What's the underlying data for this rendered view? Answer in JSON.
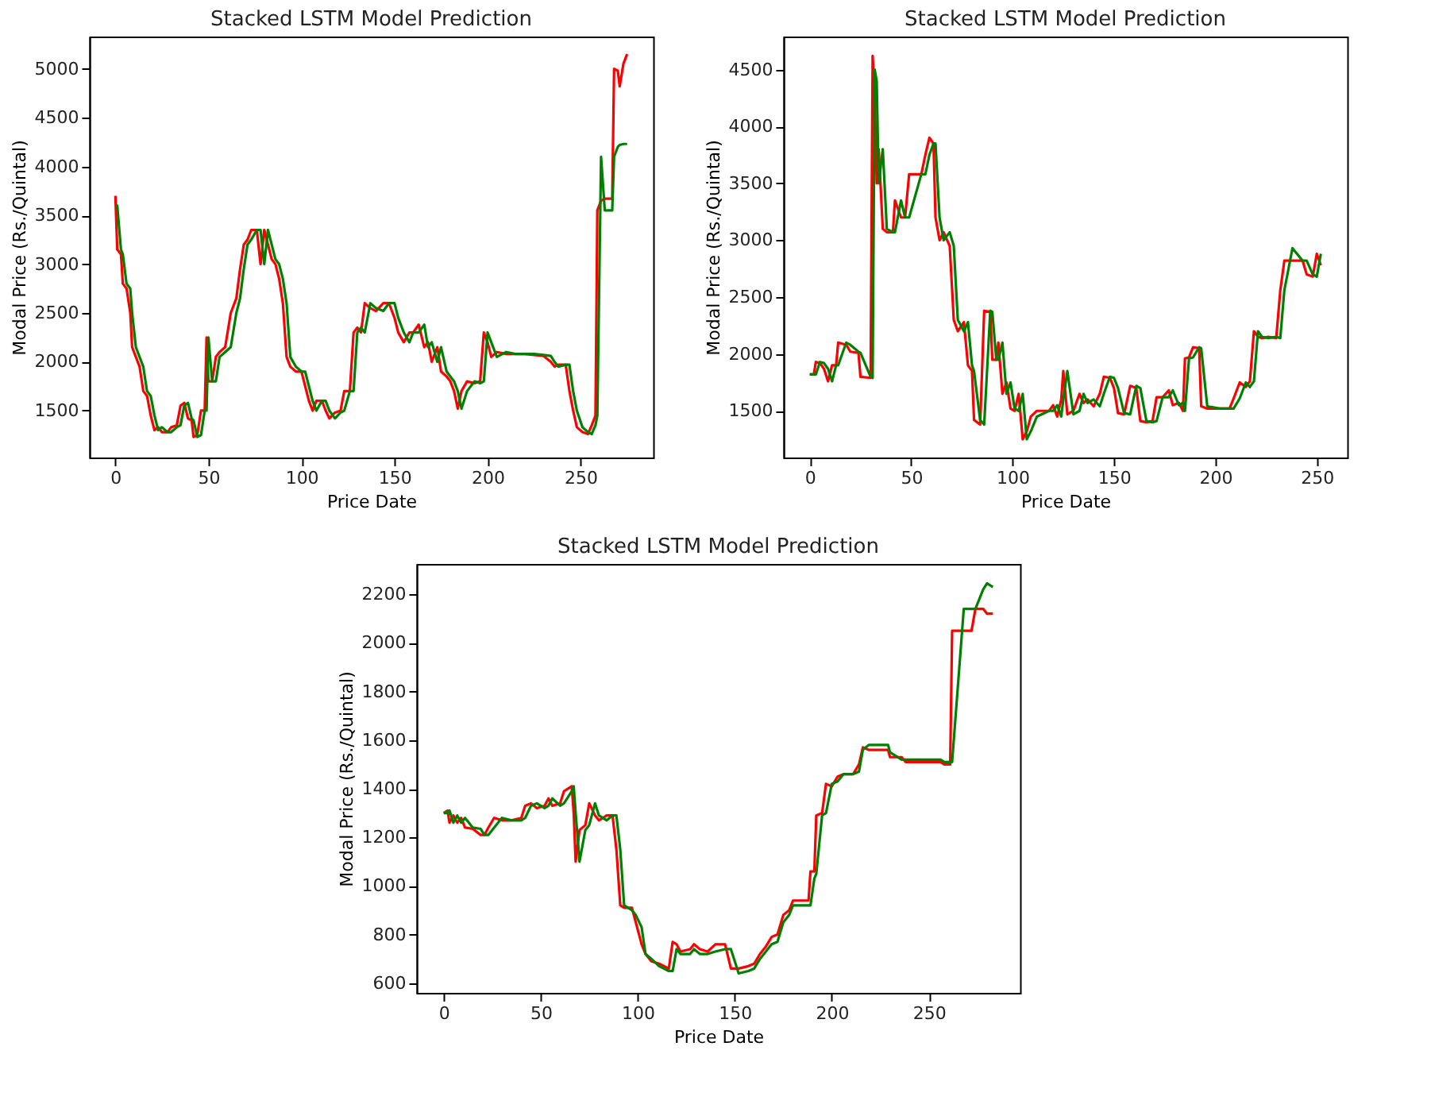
{
  "chart_data": [
    {
      "type": "line",
      "title": "Stacked LSTM Model Prediction",
      "xlabel": "Price Date",
      "ylabel": "Modal Price (Rs./Quintal)",
      "xlim": [
        -14,
        289
      ],
      "xticks": [
        0,
        50,
        100,
        150,
        200,
        250
      ],
      "ylim": [
        1020,
        5330
      ],
      "yticks": [
        1500,
        2000,
        2500,
        3000,
        3500,
        4000,
        4500,
        5000
      ],
      "grid": false,
      "x": [
        0,
        1,
        3,
        4,
        6,
        8,
        9,
        11,
        13,
        15,
        17,
        19,
        21,
        23,
        25,
        28,
        30,
        33,
        35,
        37,
        39,
        41,
        42,
        44,
        46,
        48,
        49,
        50,
        52,
        54,
        56,
        59,
        62,
        65,
        67,
        69,
        71,
        73,
        76,
        78,
        80,
        82,
        84,
        86,
        88,
        90,
        92,
        94,
        97,
        100,
        102,
        104,
        106,
        108,
        111,
        113,
        115,
        118,
        121,
        123,
        126,
        128,
        130,
        132,
        134,
        137,
        140,
        144,
        147,
        150,
        152,
        155,
        158,
        160,
        163,
        166,
        168,
        170,
        173,
        175,
        178,
        180,
        182,
        184,
        186,
        189,
        193,
        196,
        198,
        200,
        202,
        205,
        210,
        215,
        220,
        225,
        230,
        234,
        236,
        238,
        242,
        244,
        246,
        248,
        251,
        254,
        256,
        258,
        259,
        261,
        263,
        267,
        268,
        270,
        271,
        273,
        275
      ],
      "series": [
        {
          "color": "#ff0000",
          "values": [
            3700,
            3150,
            3100,
            2800,
            2750,
            2500,
            2150,
            2050,
            1950,
            1700,
            1650,
            1450,
            1300,
            1330,
            1280,
            1280,
            1330,
            1350,
            1550,
            1580,
            1420,
            1400,
            1230,
            1250,
            1500,
            1500,
            2250,
            1800,
            1800,
            2050,
            2100,
            2150,
            2500,
            2650,
            2950,
            3200,
            3250,
            3350,
            3350,
            3000,
            3350,
            3200,
            3050,
            3000,
            2850,
            2600,
            2050,
            1950,
            1900,
            1900,
            1750,
            1600,
            1500,
            1600,
            1600,
            1500,
            1420,
            1480,
            1500,
            1700,
            1700,
            2300,
            2350,
            2300,
            2600,
            2550,
            2520,
            2600,
            2600,
            2450,
            2300,
            2200,
            2300,
            2300,
            2380,
            2150,
            2200,
            2000,
            2150,
            1900,
            1850,
            1800,
            1700,
            1520,
            1700,
            1800,
            1780,
            1800,
            2300,
            2200,
            2050,
            2100,
            2080,
            2080,
            2080,
            2070,
            2060,
            2000,
            1950,
            1970,
            1970,
            1700,
            1500,
            1330,
            1280,
            1260,
            1350,
            1450,
            3550,
            3650,
            3670,
            3670,
            5000,
            4980,
            4820,
            5050,
            5150
          ]
        },
        {
          "color": "#008000",
          "values": [
            3600,
            3600,
            3150,
            3100,
            2800,
            2750,
            2500,
            2150,
            2050,
            1950,
            1700,
            1650,
            1450,
            1300,
            1330,
            1280,
            1280,
            1330,
            1350,
            1550,
            1580,
            1420,
            1400,
            1230,
            1250,
            1500,
            1500,
            2250,
            1800,
            1800,
            2050,
            2100,
            2150,
            2500,
            2650,
            2950,
            3200,
            3250,
            3350,
            3350,
            3000,
            3350,
            3200,
            3050,
            3000,
            2850,
            2600,
            2050,
            1950,
            1900,
            1900,
            1750,
            1600,
            1500,
            1600,
            1600,
            1500,
            1420,
            1480,
            1500,
            1700,
            1700,
            2300,
            2350,
            2300,
            2600,
            2550,
            2520,
            2600,
            2600,
            2450,
            2300,
            2200,
            2300,
            2300,
            2380,
            2150,
            2200,
            2000,
            2150,
            1900,
            1850,
            1800,
            1700,
            1520,
            1700,
            1800,
            1780,
            1800,
            2300,
            2200,
            2050,
            2100,
            2080,
            2080,
            2080,
            2070,
            2060,
            2000,
            1950,
            1970,
            1970,
            1700,
            1500,
            1330,
            1280,
            1260,
            1350,
            1450,
            4100,
            3550,
            3550,
            4100,
            4200,
            4220,
            4230,
            4230
          ]
        }
      ]
    },
    {
      "type": "line",
      "title": "Stacked LSTM Model Prediction",
      "xlabel": "Price Date",
      "ylabel": "Modal Price (Rs./Quintal)",
      "xlim": [
        -13,
        265
      ],
      "xticks": [
        0,
        50,
        100,
        150,
        200,
        250
      ],
      "ylim": [
        1090,
        4790
      ],
      "yticks": [
        1500,
        2000,
        2500,
        3000,
        3500,
        4000,
        4500
      ],
      "grid": false,
      "x": [
        0,
        2,
        3,
        5,
        7,
        9,
        11,
        13,
        14,
        18,
        20,
        24,
        25,
        30,
        31,
        32,
        33,
        34,
        36,
        38,
        41,
        42,
        45,
        47,
        49,
        55,
        57,
        59,
        61,
        62,
        64,
        66,
        69,
        71,
        73,
        76,
        78,
        80,
        81,
        84,
        86,
        89,
        90,
        92,
        93,
        95,
        97,
        99,
        101,
        103,
        105,
        107,
        109,
        112,
        118,
        120,
        122,
        124,
        125,
        127,
        130,
        133,
        135,
        137,
        140,
        143,
        145,
        148,
        150,
        152,
        155,
        158,
        161,
        163,
        166,
        169,
        171,
        174,
        177,
        179,
        182,
        184,
        185,
        187,
        189,
        192,
        193,
        196,
        202,
        207,
        209,
        212,
        215,
        217,
        219,
        221,
        223,
        226,
        230,
        232,
        234,
        238,
        243,
        245,
        248,
        250,
        252
      ],
      "series": [
        {
          "color": "#ff0000",
          "values": [
            1820,
            1820,
            1930,
            1920,
            1870,
            1760,
            1900,
            1900,
            2100,
            2080,
            2020,
            2010,
            1800,
            1790,
            4620,
            4300,
            3500,
            3800,
            3100,
            3070,
            3070,
            3350,
            3200,
            3200,
            3580,
            3580,
            3750,
            3900,
            3850,
            3200,
            3000,
            3070,
            2950,
            2300,
            2200,
            2280,
            1900,
            1850,
            1420,
            1380,
            2380,
            2370,
            1950,
            1950,
            2100,
            1650,
            1750,
            1520,
            1500,
            1650,
            1250,
            1320,
            1450,
            1500,
            1500,
            1550,
            1450,
            1600,
            1850,
            1470,
            1500,
            1650,
            1570,
            1600,
            1540,
            1650,
            1800,
            1790,
            1700,
            1480,
            1470,
            1720,
            1700,
            1410,
            1400,
            1410,
            1620,
            1620,
            1680,
            1550,
            1570,
            1500,
            1960,
            1970,
            2060,
            2050,
            1540,
            1520,
            1520,
            1520,
            1610,
            1750,
            1710,
            1760,
            2200,
            2150,
            2140,
            2150,
            2140,
            2560,
            2820,
            2820,
            2820,
            2700,
            2680,
            2880,
            2780
          ]
        },
        {
          "color": "#008000",
          "values": [
            1820,
            1820,
            1820,
            1930,
            1920,
            1870,
            1760,
            1900,
            1900,
            2100,
            2080,
            2020,
            2010,
            1800,
            1790,
            4500,
            4400,
            3500,
            3800,
            3100,
            3070,
            3070,
            3350,
            3200,
            3200,
            3580,
            3580,
            3750,
            3850,
            3850,
            3200,
            3000,
            3070,
            2950,
            2300,
            2200,
            2280,
            1900,
            1850,
            1420,
            1380,
            2380,
            2370,
            1950,
            1950,
            2100,
            1650,
            1750,
            1520,
            1500,
            1650,
            1250,
            1320,
            1450,
            1500,
            1500,
            1550,
            1450,
            1600,
            1850,
            1470,
            1500,
            1650,
            1570,
            1600,
            1540,
            1650,
            1800,
            1790,
            1700,
            1480,
            1470,
            1720,
            1700,
            1410,
            1400,
            1410,
            1620,
            1620,
            1680,
            1550,
            1570,
            1500,
            1960,
            1970,
            2060,
            2050,
            1540,
            1520,
            1520,
            1520,
            1610,
            1750,
            1710,
            1760,
            2200,
            2150,
            2140,
            2150,
            2140,
            2560,
            2930,
            2820,
            2820,
            2700,
            2680,
            2880
          ]
        }
      ]
    },
    {
      "type": "line",
      "title": "Stacked LSTM Model Prediction",
      "xlabel": "Price Date",
      "ylabel": "Modal Price (Rs./Quintal)",
      "xlim": [
        -14,
        297
      ],
      "xticks": [
        0,
        50,
        100,
        150,
        200,
        250
      ],
      "ylim": [
        560,
        2325
      ],
      "yticks": [
        600,
        800,
        1000,
        1200,
        1400,
        1600,
        1800,
        2000,
        2200
      ],
      "grid": false,
      "x": [
        0,
        2,
        3,
        5,
        7,
        9,
        11,
        15,
        19,
        21,
        23,
        26,
        30,
        35,
        40,
        42,
        45,
        48,
        52,
        54,
        56,
        60,
        62,
        66,
        67,
        68,
        70,
        73,
        75,
        78,
        80,
        84,
        87,
        89,
        91,
        93,
        97,
        99,
        102,
        104,
        107,
        111,
        116,
        118,
        120,
        122,
        127,
        129,
        132,
        136,
        140,
        145,
        148,
        152,
        157,
        160,
        163,
        166,
        169,
        172,
        175,
        178,
        180,
        188,
        189,
        191,
        192,
        195,
        197,
        200,
        203,
        206,
        211,
        214,
        216,
        219,
        229,
        230,
        236,
        238,
        250,
        256,
        258,
        261,
        262,
        268,
        272,
        274,
        278,
        280,
        283
      ],
      "series": [
        {
          "color": "#ff0000",
          "values": [
            1300,
            1310,
            1260,
            1290,
            1260,
            1280,
            1240,
            1235,
            1210,
            1210,
            1240,
            1280,
            1270,
            1270,
            1280,
            1330,
            1340,
            1320,
            1330,
            1360,
            1330,
            1340,
            1390,
            1410,
            1300,
            1100,
            1230,
            1250,
            1340,
            1290,
            1270,
            1290,
            1290,
            1150,
            920,
            910,
            910,
            850,
            760,
            720,
            690,
            680,
            660,
            770,
            760,
            730,
            740,
            760,
            740,
            730,
            760,
            760,
            660,
            660,
            670,
            680,
            720,
            750,
            790,
            800,
            880,
            900,
            940,
            940,
            1060,
            1060,
            1290,
            1300,
            1420,
            1410,
            1450,
            1460,
            1460,
            1500,
            1570,
            1560,
            1560,
            1530,
            1530,
            1510,
            1510,
            1510,
            1500,
            1500,
            2050,
            2050,
            2050,
            2140,
            2140,
            2120,
            2120
          ]
        },
        {
          "color": "#008000",
          "values": [
            1300,
            1300,
            1310,
            1260,
            1290,
            1260,
            1280,
            1240,
            1235,
            1210,
            1210,
            1240,
            1280,
            1270,
            1270,
            1280,
            1330,
            1340,
            1320,
            1330,
            1360,
            1330,
            1340,
            1390,
            1410,
            1300,
            1100,
            1230,
            1250,
            1340,
            1290,
            1270,
            1290,
            1290,
            1150,
            920,
            900,
            880,
            830,
            720,
            700,
            670,
            650,
            650,
            740,
            720,
            720,
            740,
            720,
            720,
            730,
            740,
            740,
            640,
            650,
            660,
            700,
            730,
            760,
            770,
            850,
            880,
            920,
            920,
            920,
            1030,
            1050,
            1290,
            1300,
            1420,
            1430,
            1460,
            1460,
            1470,
            1560,
            1580,
            1580,
            1550,
            1520,
            1520,
            1520,
            1520,
            1510,
            1510,
            1510,
            2140,
            2140,
            2140,
            2220,
            2245,
            2230
          ]
        }
      ]
    }
  ]
}
